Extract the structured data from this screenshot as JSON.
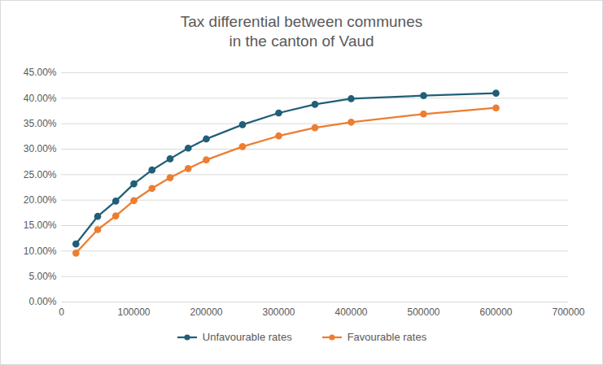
{
  "chart_data": {
    "type": "line",
    "title": "Tax differential between communes\nin the canton of Vaud",
    "x": [
      20000,
      50000,
      75000,
      100000,
      125000,
      150000,
      175000,
      200000,
      250000,
      300000,
      350000,
      400000,
      500000,
      600000
    ],
    "series": [
      {
        "name": "Unfavourable rates",
        "color": "#215f78",
        "marker": "circle",
        "line_style": "solid",
        "values": [
          11.4,
          16.8,
          19.8,
          23.2,
          25.9,
          28.1,
          30.2,
          32.0,
          34.8,
          37.1,
          38.8,
          39.9,
          40.5,
          41.0
        ]
      },
      {
        "name": "Favourable rates",
        "color": "#ed7d31",
        "marker": "circle",
        "line_style": "solid",
        "values": [
          9.6,
          14.2,
          16.9,
          19.9,
          22.3,
          24.4,
          26.2,
          27.9,
          30.5,
          32.6,
          34.2,
          35.3,
          36.9,
          38.1
        ]
      }
    ],
    "xlim": [
      0,
      700000
    ],
    "xticks": [
      0,
      100000,
      200000,
      300000,
      400000,
      500000,
      600000,
      700000
    ],
    "ylim": [
      0,
      45
    ],
    "yticks": [
      {
        "value": 0,
        "label": "0.00%"
      },
      {
        "value": 5,
        "label": "5.00%"
      },
      {
        "value": 10,
        "label": "10.00%"
      },
      {
        "value": 15,
        "label": "15.00%"
      },
      {
        "value": 20,
        "label": "20.00%"
      },
      {
        "value": 25,
        "label": "25.00%"
      },
      {
        "value": 30,
        "label": "30.00%"
      },
      {
        "value": 35,
        "label": "35.00%"
      },
      {
        "value": 40,
        "label": "40.00%"
      },
      {
        "value": 45,
        "label": "45.00%"
      }
    ],
    "grid": true,
    "legend": "bottom"
  }
}
